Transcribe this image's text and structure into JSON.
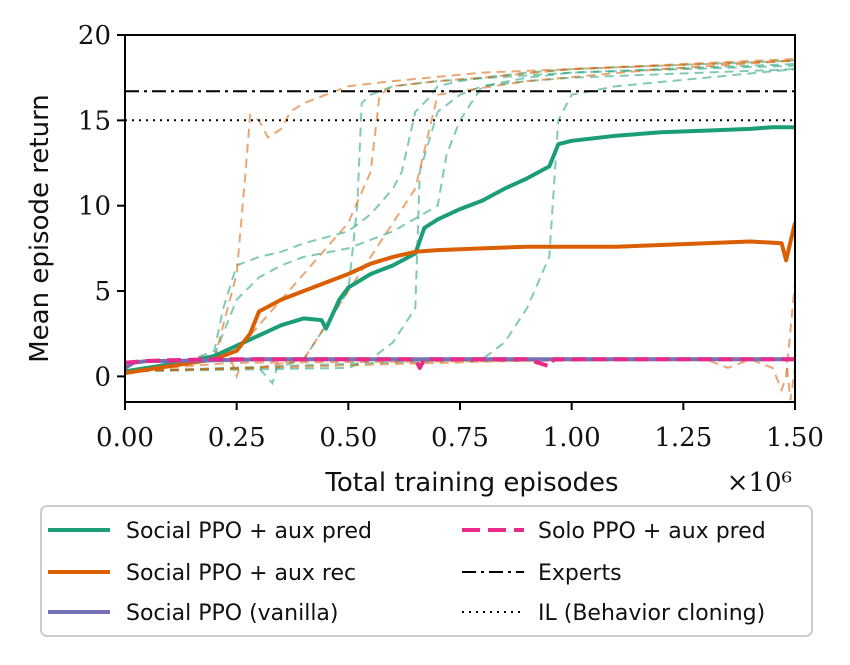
{
  "chart_data": {
    "type": "line",
    "xlabel": "Total training episodes",
    "x_multiplier_label": "×10⁶",
    "ylabel": "Mean episode return",
    "xlim": [
      0,
      1.5
    ],
    "ylim": [
      -1.5,
      20
    ],
    "x_ticks": [
      "0.00",
      "0.25",
      "0.50",
      "0.75",
      "1.00",
      "1.25",
      "1.50"
    ],
    "x_tick_values": [
      0,
      0.25,
      0.5,
      0.75,
      1.0,
      1.25,
      1.5
    ],
    "y_ticks": [
      "0",
      "5",
      "10",
      "15",
      "20"
    ],
    "y_tick_values": [
      0,
      5,
      10,
      15,
      20
    ],
    "grid": false,
    "legend_position": "below plot, two columns",
    "series": [
      {
        "name": "Social PPO + aux pred",
        "color": "#1b9e77",
        "style": "solid",
        "width": 4,
        "x": [
          0,
          0.05,
          0.1,
          0.15,
          0.2,
          0.25,
          0.3,
          0.35,
          0.4,
          0.44,
          0.45,
          0.48,
          0.5,
          0.55,
          0.6,
          0.65,
          0.67,
          0.7,
          0.75,
          0.8,
          0.85,
          0.9,
          0.95,
          0.97,
          1.0,
          1.1,
          1.2,
          1.3,
          1.4,
          1.45,
          1.5
        ],
        "y": [
          0.3,
          0.5,
          0.7,
          0.9,
          1.2,
          1.8,
          2.4,
          3.0,
          3.4,
          3.3,
          2.8,
          4.5,
          5.2,
          6.0,
          6.5,
          7.2,
          8.7,
          9.2,
          9.8,
          10.3,
          11.0,
          11.6,
          12.3,
          13.6,
          13.8,
          14.1,
          14.3,
          14.4,
          14.5,
          14.6,
          14.6
        ]
      },
      {
        "name": "Social PPO + aux rec",
        "color": "#d95f02",
        "style": "solid",
        "width": 4,
        "x": [
          0,
          0.1,
          0.2,
          0.25,
          0.28,
          0.3,
          0.35,
          0.4,
          0.45,
          0.5,
          0.55,
          0.6,
          0.65,
          0.7,
          0.8,
          0.9,
          1.0,
          1.1,
          1.2,
          1.3,
          1.4,
          1.47,
          1.48,
          1.5
        ],
        "y": [
          0.2,
          0.6,
          1.0,
          1.5,
          2.5,
          3.8,
          4.5,
          5.0,
          5.5,
          6.0,
          6.6,
          7.0,
          7.3,
          7.4,
          7.5,
          7.6,
          7.6,
          7.6,
          7.7,
          7.8,
          7.9,
          7.8,
          6.8,
          9.0
        ]
      },
      {
        "name": "Social PPO (vanilla)",
        "color": "#7570b3",
        "style": "solid",
        "width": 4,
        "x": [
          0,
          0.02,
          0.05,
          0.1,
          0.2,
          0.3,
          0.5,
          0.8,
          1.0,
          1.2,
          1.5
        ],
        "y": [
          0.5,
          0.8,
          0.9,
          0.9,
          0.95,
          1.0,
          1.0,
          1.0,
          1.0,
          1.0,
          1.0
        ]
      },
      {
        "name": "Solo PPO + aux pred",
        "color": "#e7298a",
        "style": "dashed",
        "width": 4,
        "x": [
          0,
          0.05,
          0.1,
          0.2,
          0.3,
          0.5,
          0.65,
          0.66,
          0.67,
          0.7,
          0.9,
          0.95,
          0.96,
          1.0,
          1.2,
          1.5
        ],
        "y": [
          0.8,
          0.9,
          0.95,
          1.0,
          1.0,
          1.0,
          1.0,
          0.5,
          1.0,
          1.0,
          1.0,
          0.6,
          1.0,
          1.0,
          1.0,
          1.0
        ]
      },
      {
        "name": "Experts",
        "color": "#000000",
        "style": "dashdot",
        "width": 2,
        "x": [
          0,
          1.5
        ],
        "y": [
          16.7,
          16.7
        ]
      },
      {
        "name": "IL (Behavior cloning)",
        "color": "#000000",
        "style": "dotted",
        "width": 2,
        "x": [
          0,
          1.5
        ],
        "y": [
          15.0,
          15.0
        ]
      }
    ],
    "background_runs": [
      {
        "color": "#1b9e77",
        "x": [
          0,
          0.15,
          0.2,
          0.22,
          0.25,
          0.3,
          0.35,
          0.4,
          0.5,
          0.55,
          0.6,
          0.62,
          0.65,
          0.68,
          0.7,
          0.75,
          0.8,
          0.9,
          1.0,
          1.2,
          1.5
        ],
        "y": [
          0.3,
          1.0,
          1.5,
          4.0,
          6.5,
          7.0,
          7.3,
          7.8,
          8.5,
          9.5,
          11.0,
          12.0,
          15.5,
          16.3,
          17.0,
          17.3,
          17.5,
          17.8,
          18.0,
          18.2,
          18.5
        ]
      },
      {
        "color": "#1b9e77",
        "x": [
          0,
          0.2,
          0.25,
          0.3,
          0.35,
          0.4,
          0.5,
          0.6,
          0.7,
          0.72,
          0.75,
          0.8,
          0.9,
          1.0,
          1.2,
          1.5
        ],
        "y": [
          0.3,
          1.2,
          4.5,
          5.8,
          6.5,
          7.0,
          7.5,
          8.5,
          10.0,
          13.0,
          15.0,
          17.0,
          17.5,
          17.8,
          18.0,
          18.3
        ]
      },
      {
        "color": "#1b9e77",
        "x": [
          0,
          0.3,
          0.33,
          0.34,
          0.4,
          0.45,
          0.5,
          0.52,
          0.53,
          0.55,
          0.6,
          0.7,
          1.0,
          1.5
        ],
        "y": [
          0.3,
          0.5,
          -0.4,
          0.5,
          1.0,
          3.0,
          5.0,
          10.0,
          16.0,
          16.5,
          17.0,
          17.3,
          17.8,
          18.2
        ]
      },
      {
        "color": "#1b9e77",
        "x": [
          0,
          0.5,
          0.55,
          0.6,
          0.65,
          0.66,
          0.7,
          0.75,
          0.8,
          0.9,
          1.0,
          1.5
        ],
        "y": [
          0.3,
          0.5,
          1.0,
          2.0,
          4.0,
          12.0,
          15.5,
          16.5,
          17.0,
          17.3,
          17.5,
          18.0
        ]
      },
      {
        "color": "#1b9e77",
        "x": [
          0,
          0.8,
          0.85,
          0.9,
          0.95,
          0.97,
          1.0,
          1.1,
          1.3,
          1.5
        ],
        "y": [
          0.3,
          1.0,
          2.0,
          4.0,
          7.0,
          15.0,
          16.5,
          17.0,
          17.5,
          18.0
        ]
      },
      {
        "color": "#d95f02",
        "x": [
          0,
          0.2,
          0.22,
          0.25,
          0.27,
          0.28,
          0.3,
          0.32,
          0.35,
          0.37,
          0.4,
          0.45,
          0.5,
          0.6,
          0.8,
          1.0,
          1.5
        ],
        "y": [
          0.3,
          1.0,
          3.0,
          6.0,
          12.0,
          15.3,
          15.0,
          14.0,
          14.5,
          15.5,
          16.0,
          16.5,
          17.0,
          17.3,
          17.8,
          18.0,
          18.5
        ]
      },
      {
        "color": "#d95f02",
        "x": [
          0,
          0.25,
          0.3,
          0.4,
          0.5,
          0.55,
          0.57,
          0.6,
          0.7,
          0.8,
          1.0,
          1.5
        ],
        "y": [
          0.3,
          1.5,
          3.0,
          6.0,
          9.0,
          12.0,
          16.5,
          17.0,
          17.3,
          17.5,
          18.0,
          18.6
        ]
      },
      {
        "color": "#d95f02",
        "x": [
          0,
          0.3,
          0.4,
          0.45,
          0.5,
          0.55,
          0.6,
          0.65,
          0.7,
          0.9,
          1.2,
          1.5
        ],
        "y": [
          0.3,
          0.5,
          1.0,
          3.0,
          5.0,
          7.0,
          9.0,
          11.0,
          16.5,
          17.3,
          18.0,
          18.5
        ]
      },
      {
        "color": "#d95f02",
        "x": [
          0,
          1.0,
          1.3,
          1.35,
          1.4,
          1.45,
          1.47,
          1.48,
          1.5
        ],
        "y": [
          0.3,
          1.0,
          1.0,
          0.5,
          1.0,
          0.5,
          -0.8,
          0.0,
          5.5
        ]
      },
      {
        "color": "#d95f02",
        "x": [
          0,
          0.24,
          0.25,
          0.26,
          1.48,
          1.49,
          1.5
        ],
        "y": [
          0.3,
          0.8,
          0.0,
          0.8,
          1.0,
          -1.4,
          0.5
        ]
      }
    ]
  }
}
